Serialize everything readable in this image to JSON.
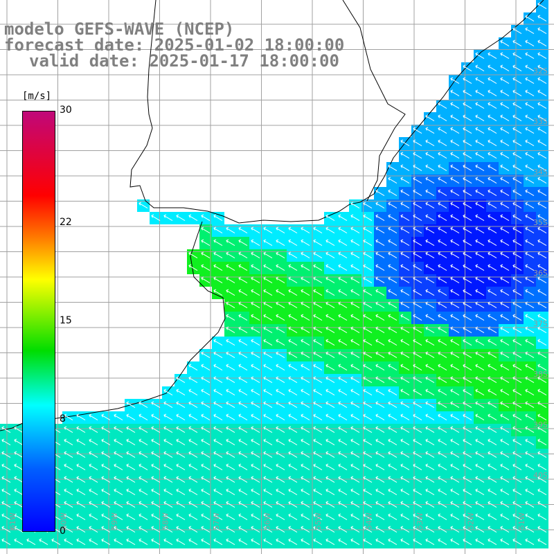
{
  "title": {
    "model": "modelo GEFS-WAVE (NCEP)",
    "forecast": "forecast date: 2025-01-02 18:00:00",
    "valid": "valid date: 2025-01-17 18:00:00"
  },
  "colorbar": {
    "unit": "[m/s]",
    "ticks": [
      {
        "label": "30",
        "value": 30
      },
      {
        "label": "22",
        "value": 22
      },
      {
        "label": "15",
        "value": 15
      },
      {
        "label": "8",
        "value": 8
      },
      {
        "label": "0",
        "value": 0
      }
    ],
    "range": [
      0,
      30
    ]
  },
  "lat_labels": [
    "32S",
    "33S",
    "34S",
    "35S",
    "36S",
    "37S",
    "38S",
    "39S",
    "40S"
  ],
  "lon_labels": [
    "61W",
    "60W",
    "59W",
    "58W",
    "57W",
    "56W",
    "55W",
    "54W",
    "53W",
    "52W",
    "51W"
  ],
  "colors": {
    "weak": "#0a2dff",
    "mid": "#00c8ff",
    "strong": "#00e84a",
    "coast": "#000000",
    "grid": "#a0a0a0"
  }
}
